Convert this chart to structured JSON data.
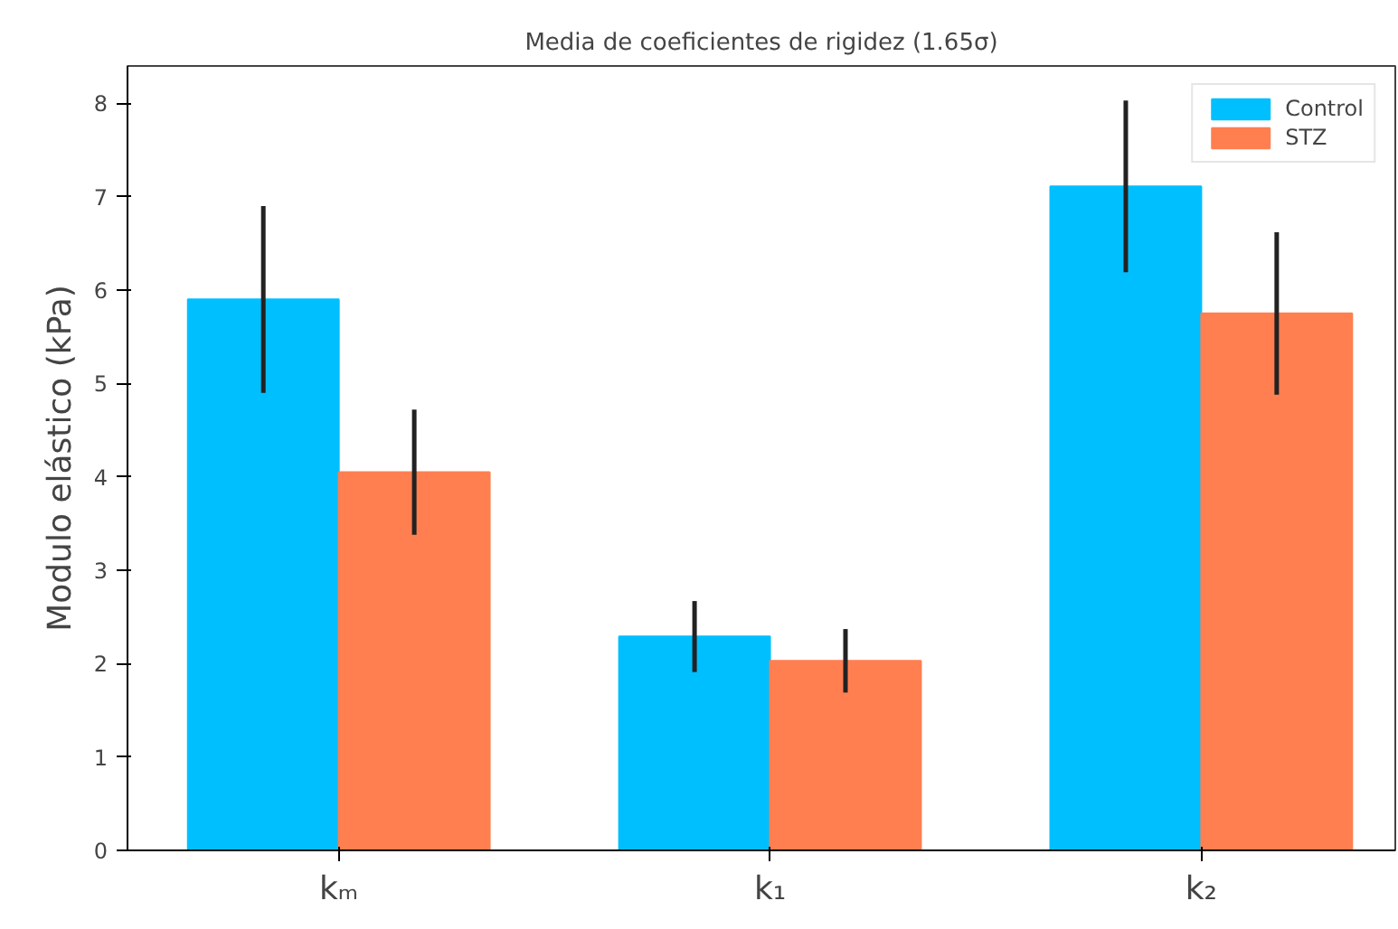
{
  "chart_data": {
    "type": "bar",
    "title": "Media de coeficientes de rigidez (1.65σ)",
    "ylabel": "Modulo elástico (kPa)",
    "categories": [
      "kₘ",
      "k₁",
      "k₂"
    ],
    "series": [
      {
        "name": "Control",
        "color": "#00bfff",
        "values": [
          5.9,
          2.29,
          7.11
        ],
        "errors": [
          1.0,
          0.38,
          0.92
        ]
      },
      {
        "name": "STZ",
        "color": "#ff7f50",
        "values": [
          4.05,
          2.03,
          5.75
        ],
        "errors": [
          0.67,
          0.34,
          0.87
        ]
      }
    ],
    "ylim": [
      0,
      8.4
    ],
    "yticks": [
      0,
      1,
      2,
      3,
      4,
      5,
      6,
      7,
      8
    ],
    "grid": false,
    "legend": "top right"
  }
}
